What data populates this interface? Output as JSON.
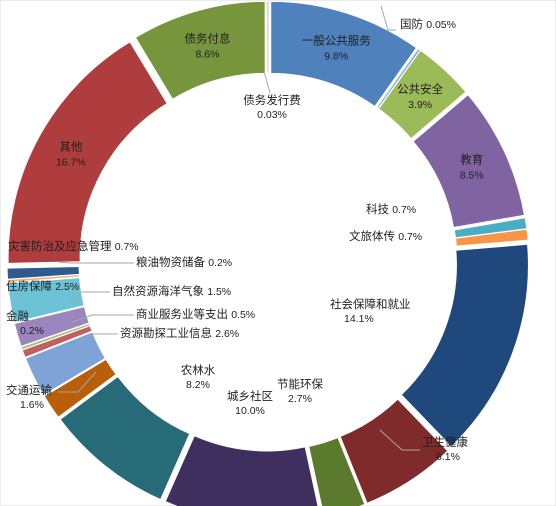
{
  "chart_data": {
    "type": "pie",
    "variant": "exploded-donut",
    "title": "",
    "slices": [
      {
        "name": "一般公共服务",
        "value": 9.8,
        "label": "9.8%",
        "color": "#4f81bd"
      },
      {
        "name": "国防",
        "value": 0.05,
        "label": "0.05%",
        "color": "#8eb4e3"
      },
      {
        "name": "公共安全",
        "value": 3.9,
        "label": "3.9%",
        "color": "#9bbb59"
      },
      {
        "name": "教育",
        "value": 8.5,
        "label": "8.5%",
        "color": "#8064a2"
      },
      {
        "name": "科技",
        "value": 0.7,
        "label": "0.7%",
        "color": "#4bacc6"
      },
      {
        "name": "文旅体传",
        "value": 0.7,
        "label": "0.7%",
        "color": "#f79646"
      },
      {
        "name": "社会保障和就业",
        "value": 14.1,
        "label": "14.1%",
        "color": "#1f497d"
      },
      {
        "name": "卫生健康",
        "value": 6.1,
        "label": "6.1%",
        "color": "#7f2b2b"
      },
      {
        "name": "节能环保",
        "value": 2.7,
        "label": "2.7%",
        "color": "#5b7a2e"
      },
      {
        "name": "城乡社区",
        "value": 10.0,
        "label": "10.0%",
        "color": "#3f2f5e"
      },
      {
        "name": "农林水",
        "value": 8.2,
        "label": "8.2%",
        "color": "#276b78"
      },
      {
        "name": "交通运输",
        "value": 1.6,
        "label": "1.6%",
        "color": "#b95e0a"
      },
      {
        "name": "资源勘探工业信息",
        "value": 2.6,
        "label": "2.6%",
        "color": "#7ea3d6"
      },
      {
        "name": "商业服务业等支出",
        "value": 0.5,
        "label": "0.5%",
        "color": "#c06060"
      },
      {
        "name": "金融",
        "value": 0.2,
        "label": "0.2%",
        "color": "#a4c27a"
      },
      {
        "name": "自然资源海洋气象",
        "value": 1.5,
        "label": "1.5%",
        "color": "#9a85be"
      },
      {
        "name": "住房保障",
        "value": 2.5,
        "label": "2.5%",
        "color": "#6cc3d6"
      },
      {
        "name": "粮油物资储备",
        "value": 0.2,
        "label": "0.2%",
        "color": "#f2b27a"
      },
      {
        "name": "灾害防治及应急管理",
        "value": 0.7,
        "label": "0.7%",
        "color": "#2e5a8c"
      },
      {
        "name": "其他",
        "value": 16.7,
        "label": "16.7%",
        "color": "#b03d3d"
      },
      {
        "name": "债务付息",
        "value": 8.6,
        "label": "8.6%",
        "color": "#76953d"
      },
      {
        "name": "债务发行费",
        "value": 0.03,
        "label": "0.03%",
        "color": "#d9d9d9"
      }
    ],
    "legend": "none",
    "start_angle_deg": 0,
    "direction": "clockwise"
  }
}
